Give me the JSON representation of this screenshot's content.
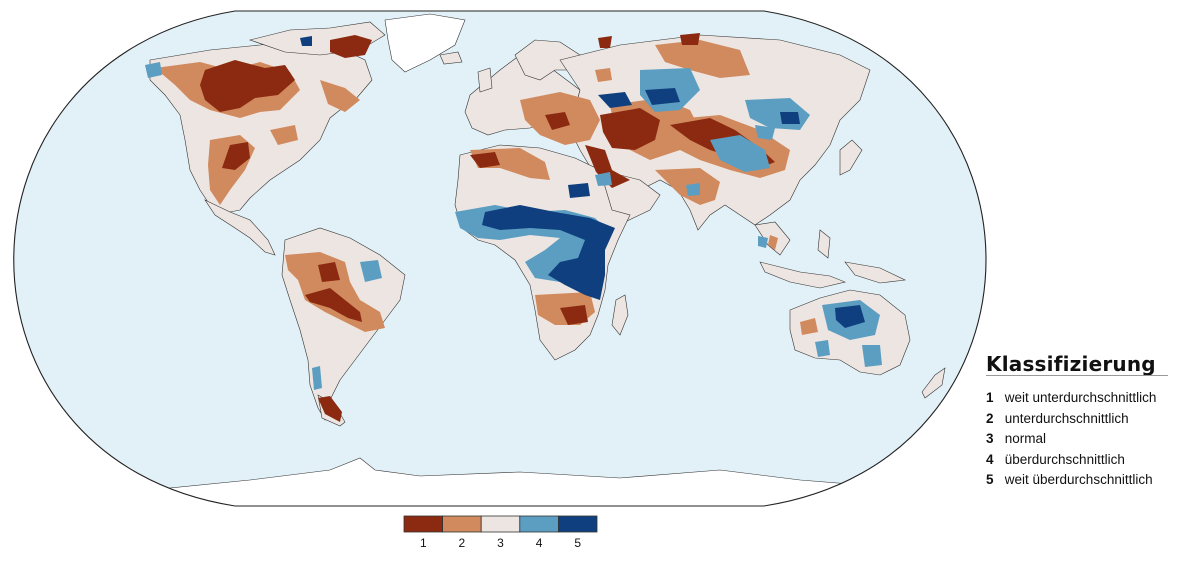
{
  "legend": {
    "title": "Klassifizierung",
    "classes": [
      {
        "num": "1",
        "label": "weit unterdurchschnittlich",
        "color": "#8B2A10"
      },
      {
        "num": "2",
        "label": "unterdurchschnittlich",
        "color": "#D08A5E"
      },
      {
        "num": "3",
        "label": "normal",
        "color": "#EDE5E1"
      },
      {
        "num": "4",
        "label": "überdurchschnittlich",
        "color": "#5B9EC2"
      },
      {
        "num": "5",
        "label": "weit überdurchschnittlich",
        "color": "#0F3F7E"
      }
    ]
  },
  "colorbar": {
    "labels": [
      "1",
      "2",
      "3",
      "4",
      "5"
    ]
  },
  "map": {
    "ocean_color": "#E1F1F7",
    "land_normal_color": "#EDE5E1",
    "ice_color": "#FFFFFF",
    "outline_color": "#222222"
  }
}
